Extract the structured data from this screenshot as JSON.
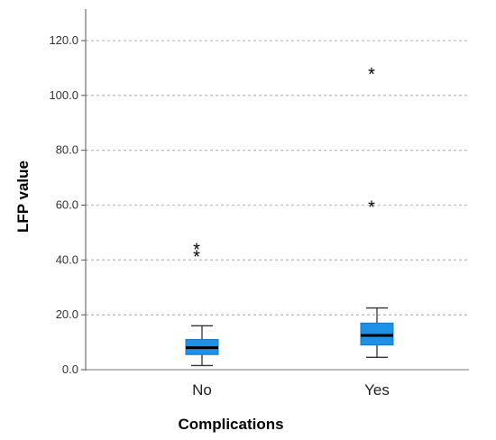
{
  "chart_data": {
    "type": "boxplot",
    "xlabel": "Complications",
    "ylabel": "LFP value",
    "categories": [
      "No",
      "Yes"
    ],
    "ylim": [
      0,
      130
    ],
    "yticks": [
      0,
      20,
      40,
      60,
      80,
      100,
      120
    ],
    "ytick_labels": [
      "0.0",
      "20.0",
      "40.0",
      "60.0",
      "80.0",
      "100.0",
      "120.0"
    ],
    "grid": "horizontal dashed",
    "box_color": "#1e90e6",
    "series": [
      {
        "category": "No",
        "min": 1.5,
        "q1": 5.5,
        "median": 8.0,
        "q3": 11.0,
        "max": 16.0,
        "outliers": [
          42.0,
          44.5
        ]
      },
      {
        "category": "Yes",
        "min": 4.5,
        "q1": 9.0,
        "median": 12.5,
        "q3": 17.0,
        "max": 22.5,
        "outliers": [
          60.0,
          108.5
        ]
      }
    ]
  }
}
